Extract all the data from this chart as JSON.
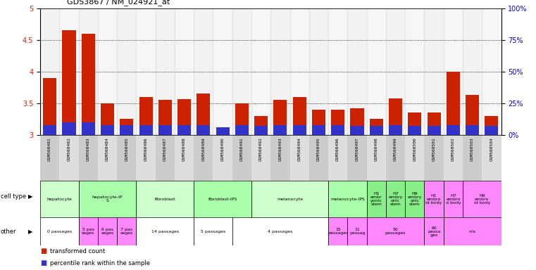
{
  "title": "GDS3867 / NM_024921_at",
  "samples": [
    "GSM568481",
    "GSM568482",
    "GSM568483",
    "GSM568484",
    "GSM568485",
    "GSM568486",
    "GSM568487",
    "GSM568488",
    "GSM568489",
    "GSM568490",
    "GSM568491",
    "GSM568492",
    "GSM568493",
    "GSM568494",
    "GSM568495",
    "GSM568496",
    "GSM568497",
    "GSM568498",
    "GSM568499",
    "GSM568500",
    "GSM568501",
    "GSM568502",
    "GSM568503",
    "GSM568504"
  ],
  "transformed_count": [
    3.9,
    4.65,
    4.6,
    3.5,
    3.25,
    3.6,
    3.55,
    3.56,
    3.65,
    3.1,
    3.5,
    3.3,
    3.55,
    3.6,
    3.4,
    3.4,
    3.42,
    3.25,
    3.58,
    3.35,
    3.35,
    4.0,
    3.63,
    3.3
  ],
  "percentile_rank_pct": [
    8,
    10,
    10,
    8,
    8,
    8,
    8,
    8,
    8,
    6,
    8,
    7,
    8,
    8,
    8,
    8,
    7,
    7,
    8,
    7,
    7,
    8,
    8,
    7
  ],
  "ylim_left": [
    3.0,
    5.0
  ],
  "ylim_right": [
    0,
    100
  ],
  "yticks_left": [
    3.0,
    3.5,
    4.0,
    4.5,
    5.0
  ],
  "ytick_labels_left": [
    "3",
    "3.5",
    "4",
    "4.5",
    "5"
  ],
  "yticks_right": [
    0,
    25,
    50,
    75,
    100
  ],
  "ytick_labels_right": [
    "0%",
    "25%",
    "50%",
    "75%",
    "100%"
  ],
  "bar_color_red": "#cc2200",
  "bar_color_blue": "#3333cc",
  "bg_color": "#ffffff",
  "plot_bg": "#ffffff",
  "tick_label_color_left": "#cc2200",
  "tick_label_color_right": "#0000cc",
  "xtick_bg_even": "#cccccc",
  "xtick_bg_odd": "#dddddd",
  "cell_type_groups": [
    {
      "label": "hepatocyte",
      "start": 0,
      "end": 1,
      "color": "#ccffcc"
    },
    {
      "label": "hepatocyte-iP\nS",
      "start": 2,
      "end": 4,
      "color": "#aaffaa"
    },
    {
      "label": "fibroblast",
      "start": 5,
      "end": 7,
      "color": "#ccffcc"
    },
    {
      "label": "fibroblast-IPS",
      "start": 8,
      "end": 10,
      "color": "#aaffaa"
    },
    {
      "label": "melanocyte",
      "start": 11,
      "end": 14,
      "color": "#ccffcc"
    },
    {
      "label": "melanocyte-IPS",
      "start": 15,
      "end": 16,
      "color": "#aaffaa"
    },
    {
      "label": "H1\nembr\nyonic\nstem",
      "start": 17,
      "end": 17,
      "color": "#88ee88"
    },
    {
      "label": "H7\nembry\nonic\nstem",
      "start": 18,
      "end": 18,
      "color": "#88ee88"
    },
    {
      "label": "H9\nembry\nonic\nstem",
      "start": 19,
      "end": 19,
      "color": "#88ee88"
    },
    {
      "label": "H1\nembro\nid body",
      "start": 20,
      "end": 20,
      "color": "#ff88ff"
    },
    {
      "label": "H7\nembro\nd body",
      "start": 21,
      "end": 21,
      "color": "#ff88ff"
    },
    {
      "label": "H9\nembro\nid body",
      "start": 22,
      "end": 23,
      "color": "#ff88ff"
    }
  ],
  "other_groups": [
    {
      "label": "0 passages",
      "start": 0,
      "end": 1,
      "color": "#ffffff"
    },
    {
      "label": "5 pas\nsages",
      "start": 2,
      "end": 2,
      "color": "#ff88ff"
    },
    {
      "label": "6 pas\nsages",
      "start": 3,
      "end": 3,
      "color": "#ff88ff"
    },
    {
      "label": "7 pas\nsages",
      "start": 4,
      "end": 4,
      "color": "#ff88ff"
    },
    {
      "label": "14 passages",
      "start": 5,
      "end": 7,
      "color": "#ffffff"
    },
    {
      "label": "5 passages",
      "start": 8,
      "end": 9,
      "color": "#ffffff"
    },
    {
      "label": "4 passages",
      "start": 10,
      "end": 14,
      "color": "#ffffff"
    },
    {
      "label": "15\npassages",
      "start": 15,
      "end": 15,
      "color": "#ff88ff"
    },
    {
      "label": "11\npassag",
      "start": 16,
      "end": 16,
      "color": "#ff88ff"
    },
    {
      "label": "50\npassages",
      "start": 17,
      "end": 19,
      "color": "#ff88ff"
    },
    {
      "label": "60\npassa\nges",
      "start": 20,
      "end": 20,
      "color": "#ff88ff"
    },
    {
      "label": "n/a",
      "start": 21,
      "end": 23,
      "color": "#ff88ff"
    }
  ]
}
